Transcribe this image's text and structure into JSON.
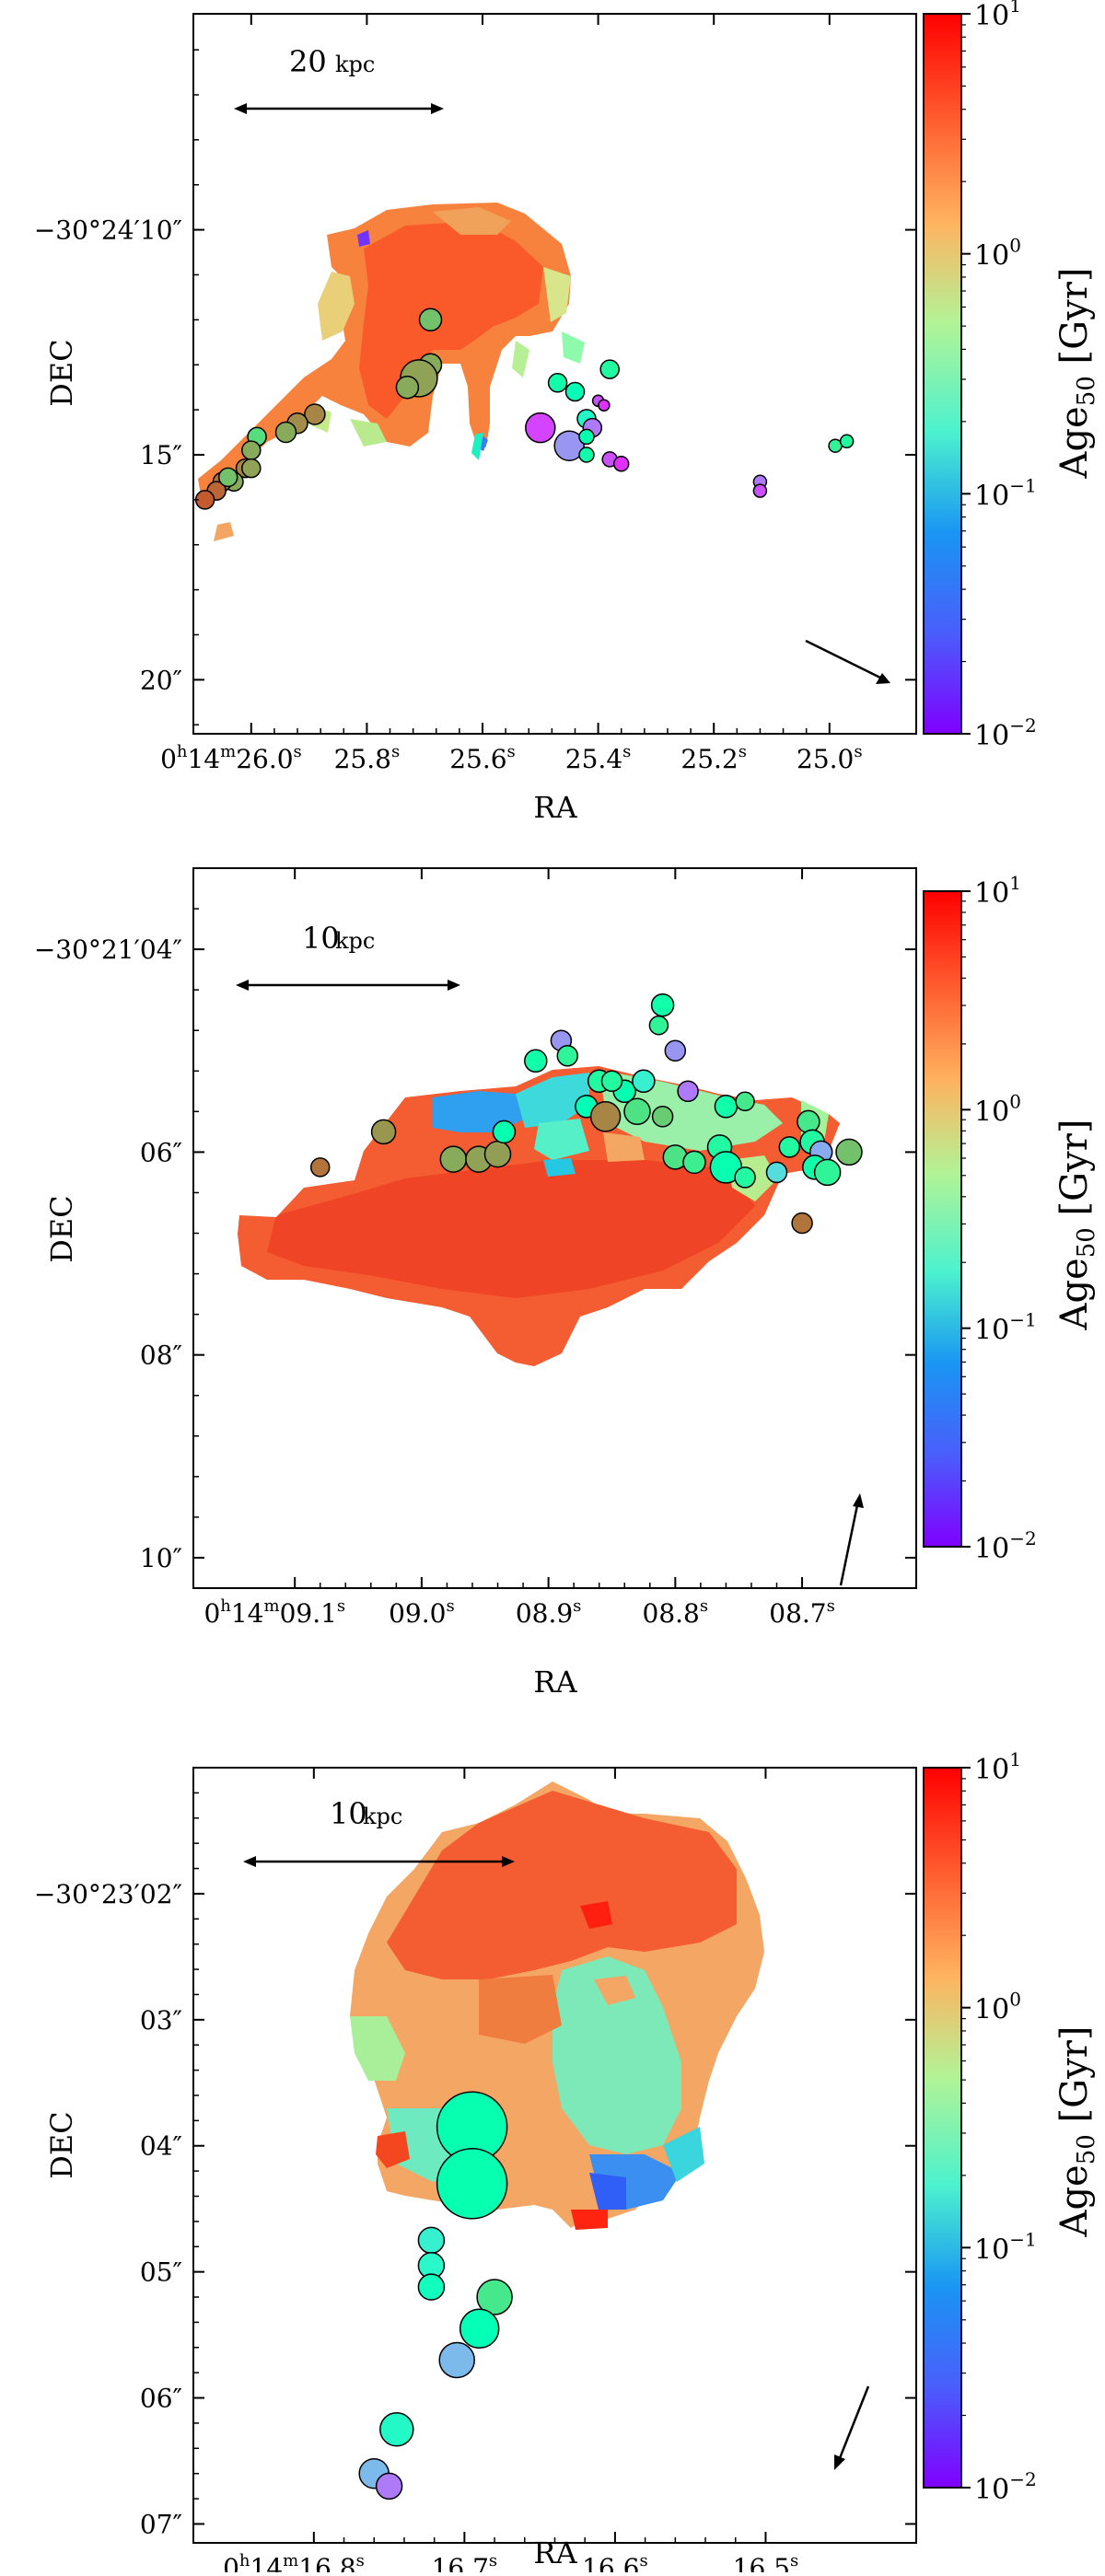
{
  "colorbar": {
    "label_main": "Age",
    "label_sub": "50",
    "label_unit": "[Gyr]",
    "ticks": [
      {
        "base": "10",
        "exp": "1",
        "value": 10
      },
      {
        "base": "10",
        "exp": "0",
        "value": 1
      },
      {
        "base": "10",
        "exp": "−1",
        "value": 0.1
      },
      {
        "base": "10",
        "exp": "−2",
        "value": 0.01
      }
    ],
    "colormap": "rainbow",
    "range": [
      0.01,
      10
    ],
    "scale": "log"
  },
  "chart_data": [
    {
      "type": "scatter",
      "panel": "top",
      "xlabel": "RA",
      "ylabel": "DEC",
      "scale_bar": "20 kpc",
      "scale_bar_value": "20",
      "scale_bar_unit": "kpc",
      "xlim": [
        26.1,
        24.85
      ],
      "ylim": [
        21.2,
        5.2
      ],
      "x_ticks": [
        {
          "value": 26.0,
          "label": "0h14m26.0s",
          "h": "0",
          "m": "14",
          "s": "26.0"
        },
        {
          "value": 25.8,
          "label": "25.8s",
          "num": "25.8"
        },
        {
          "value": 25.6,
          "label": "25.6s",
          "num": "25.6"
        },
        {
          "value": 25.4,
          "label": "25.4s",
          "num": "25.4"
        },
        {
          "value": 25.2,
          "label": "25.2s",
          "num": "25.2"
        },
        {
          "value": 25.0,
          "label": "25.0s",
          "num": "25.0"
        }
      ],
      "y_ticks": [
        {
          "value": 10,
          "label": "−30°24′10″"
        },
        {
          "value": 15,
          "label": "15″"
        },
        {
          "value": 20,
          "label": "20″"
        }
      ],
      "direction_arrow": "lower-right",
      "clumps": [
        {
          "ra": 25.69,
          "dec": 12.0,
          "age": 1.5
        },
        {
          "ra": 25.69,
          "dec": 13.0,
          "age": 2.0
        },
        {
          "ra": 25.71,
          "dec": 13.3,
          "age": 2.2
        },
        {
          "ra": 25.73,
          "dec": 13.5,
          "age": 2.0
        },
        {
          "ra": 25.89,
          "dec": 14.1,
          "age": 3.0
        },
        {
          "ra": 25.92,
          "dec": 14.3,
          "age": 2.8
        },
        {
          "ra": 25.94,
          "dec": 14.5,
          "age": 2.0
        },
        {
          "ra": 25.99,
          "dec": 14.6,
          "age": 1.0
        },
        {
          "ra": 26.0,
          "dec": 14.9,
          "age": 2.0
        },
        {
          "ra": 26.01,
          "dec": 15.3,
          "age": 3.0
        },
        {
          "ra": 26.0,
          "dec": 15.3,
          "age": 2.2
        },
        {
          "ra": 26.03,
          "dec": 15.6,
          "age": 2.0
        },
        {
          "ra": 26.05,
          "dec": 15.6,
          "age": 3.5
        },
        {
          "ra": 26.06,
          "dec": 15.8,
          "age": 4.0
        },
        {
          "ra": 26.08,
          "dec": 16.0,
          "age": 4.5
        },
        {
          "ra": 26.04,
          "dec": 15.5,
          "age": 1.5
        },
        {
          "ra": 25.5,
          "dec": 14.4,
          "age": 0.018
        },
        {
          "ra": 25.45,
          "dec": 14.8,
          "age": 0.04
        },
        {
          "ra": 25.42,
          "dec": 14.2,
          "age": 0.2
        },
        {
          "ra": 25.38,
          "dec": 13.1,
          "age": 0.5
        },
        {
          "ra": 25.47,
          "dec": 13.4,
          "age": 0.4
        },
        {
          "ra": 25.44,
          "dec": 13.6,
          "age": 0.3
        },
        {
          "ra": 25.41,
          "dec": 14.4,
          "age": 0.03
        },
        {
          "ra": 25.38,
          "dec": 15.1,
          "age": 0.02
        },
        {
          "ra": 25.36,
          "dec": 15.2,
          "age": 0.015
        },
        {
          "ra": 25.42,
          "dec": 15.0,
          "age": 0.4
        },
        {
          "ra": 25.42,
          "dec": 14.6,
          "age": 0.35
        },
        {
          "ra": 25.4,
          "dec": 13.8,
          "age": 0.02
        },
        {
          "ra": 25.39,
          "dec": 13.9,
          "age": 0.015
        },
        {
          "ra": 25.12,
          "dec": 15.6,
          "age": 0.03
        },
        {
          "ra": 25.12,
          "dec": 15.8,
          "age": 0.02
        },
        {
          "ra": 24.99,
          "dec": 14.8,
          "age": 0.6
        },
        {
          "ra": 24.97,
          "dec": 14.7,
          "age": 0.5
        }
      ]
    },
    {
      "type": "scatter",
      "panel": "middle",
      "xlabel": "RA",
      "ylabel": "DEC",
      "scale_bar": "10 kpc",
      "scale_bar_value": "10",
      "scale_bar_unit": "kpc",
      "xlim": [
        9.18,
        8.61
      ],
      "ylim": [
        10.3,
        3.2
      ],
      "x_ticks": [
        {
          "value": 9.1,
          "label": "0h14m09.1s",
          "h": "0",
          "m": "14",
          "s": "09.1"
        },
        {
          "value": 9.0,
          "label": "09.0s",
          "num": "09.0"
        },
        {
          "value": 8.9,
          "label": "08.9s",
          "num": "08.9"
        },
        {
          "value": 8.8,
          "label": "08.8s",
          "num": "08.8"
        },
        {
          "value": 8.7,
          "label": "08.7s",
          "num": "08.7"
        }
      ],
      "y_ticks": [
        {
          "value": 4,
          "label": "−30°21′04″"
        },
        {
          "value": 6,
          "label": "06″"
        },
        {
          "value": 8,
          "label": "08″"
        },
        {
          "value": 10,
          "label": "10″"
        }
      ],
      "direction_arrow": "lower-right",
      "clumps": [
        {
          "ra": 9.08,
          "dec": 6.15,
          "age": 3.5
        },
        {
          "ra": 9.03,
          "dec": 5.8,
          "age": 2.5
        },
        {
          "ra": 8.975,
          "dec": 6.07,
          "age": 2.0
        },
        {
          "ra": 8.955,
          "dec": 6.07,
          "age": 2.2
        },
        {
          "ra": 8.94,
          "dec": 6.02,
          "age": 2.3
        },
        {
          "ra": 8.935,
          "dec": 5.8,
          "age": 0.35
        },
        {
          "ra": 8.91,
          "dec": 5.1,
          "age": 0.4
        },
        {
          "ra": 8.89,
          "dec": 4.9,
          "age": 0.04
        },
        {
          "ra": 8.885,
          "dec": 5.05,
          "age": 0.6
        },
        {
          "ra": 8.86,
          "dec": 5.3,
          "age": 0.5
        },
        {
          "ra": 8.87,
          "dec": 5.55,
          "age": 0.3
        },
        {
          "ra": 8.84,
          "dec": 5.4,
          "age": 0.35
        },
        {
          "ra": 8.85,
          "dec": 5.3,
          "age": 0.5
        },
        {
          "ra": 8.855,
          "dec": 5.65,
          "age": 3.0
        },
        {
          "ra": 8.83,
          "dec": 5.6,
          "age": 0.9
        },
        {
          "ra": 8.825,
          "dec": 5.3,
          "age": 0.15
        },
        {
          "ra": 8.81,
          "dec": 4.55,
          "age": 0.4
        },
        {
          "ra": 8.813,
          "dec": 4.75,
          "age": 0.6
        },
        {
          "ra": 8.8,
          "dec": 5.0,
          "age": 0.04
        },
        {
          "ra": 8.81,
          "dec": 5.65,
          "age": 1.3
        },
        {
          "ra": 8.8,
          "dec": 6.05,
          "age": 0.9
        },
        {
          "ra": 8.785,
          "dec": 6.1,
          "age": 0.7
        },
        {
          "ra": 8.79,
          "dec": 5.4,
          "age": 0.03
        },
        {
          "ra": 8.765,
          "dec": 5.95,
          "age": 0.5
        },
        {
          "ra": 8.76,
          "dec": 6.15,
          "age": 0.35
        },
        {
          "ra": 8.76,
          "dec": 5.55,
          "age": 0.4
        },
        {
          "ra": 8.745,
          "dec": 5.5,
          "age": 0.8
        },
        {
          "ra": 8.745,
          "dec": 6.25,
          "age": 0.5
        },
        {
          "ra": 8.72,
          "dec": 6.2,
          "age": 0.1
        },
        {
          "ra": 8.71,
          "dec": 5.95,
          "age": 0.5
        },
        {
          "ra": 8.7,
          "dec": 6.7,
          "age": 3.5
        },
        {
          "ra": 8.695,
          "dec": 5.7,
          "age": 0.8
        },
        {
          "ra": 8.692,
          "dec": 5.9,
          "age": 0.5
        },
        {
          "ra": 8.685,
          "dec": 6.0,
          "age": 0.05
        },
        {
          "ra": 8.69,
          "dec": 6.15,
          "age": 0.4
        },
        {
          "ra": 8.68,
          "dec": 6.2,
          "age": 0.6
        },
        {
          "ra": 8.663,
          "dec": 6.0,
          "age": 1.5
        }
      ]
    },
    {
      "type": "scatter",
      "panel": "bottom",
      "xlabel": "RA",
      "ylabel": "DEC",
      "scale_bar": "10 kpc",
      "scale_bar_value": "10",
      "scale_bar_unit": "kpc",
      "xlim": [
        16.88,
        16.4
      ],
      "ylim": [
        7.15,
        1.0
      ],
      "x_ticks": [
        {
          "value": 16.8,
          "label": "0h14m16.8s",
          "h": "0",
          "m": "14",
          "s": "16.8"
        },
        {
          "value": 16.7,
          "label": "16.7s",
          "num": "16.7"
        },
        {
          "value": 16.6,
          "label": "16.6s",
          "num": "16.6"
        },
        {
          "value": 16.5,
          "label": "16.5s",
          "num": "16.5"
        }
      ],
      "y_ticks": [
        {
          "value": 2,
          "label": "−30°23′02″"
        },
        {
          "value": 3,
          "label": "03″"
        },
        {
          "value": 4,
          "label": "04″"
        },
        {
          "value": 5,
          "label": "05″"
        },
        {
          "value": 6,
          "label": "06″"
        },
        {
          "value": 7,
          "label": "07″"
        }
      ],
      "direction_arrow": "lower-right",
      "clumps": [
        {
          "ra": 16.695,
          "dec": 3.85,
          "age": 0.35
        },
        {
          "ra": 16.695,
          "dec": 4.3,
          "age": 0.35
        },
        {
          "ra": 16.722,
          "dec": 4.75,
          "age": 0.15
        },
        {
          "ra": 16.722,
          "dec": 4.95,
          "age": 0.18
        },
        {
          "ra": 16.722,
          "dec": 5.12,
          "age": 0.25
        },
        {
          "ra": 16.68,
          "dec": 5.2,
          "age": 0.8
        },
        {
          "ra": 16.69,
          "dec": 5.45,
          "age": 0.3
        },
        {
          "ra": 16.705,
          "dec": 5.7,
          "age": 0.06
        },
        {
          "ra": 16.745,
          "dec": 6.25,
          "age": 0.2
        },
        {
          "ra": 16.76,
          "dec": 6.6,
          "age": 0.06
        },
        {
          "ra": 16.75,
          "dec": 6.7,
          "age": 0.03
        }
      ]
    }
  ]
}
